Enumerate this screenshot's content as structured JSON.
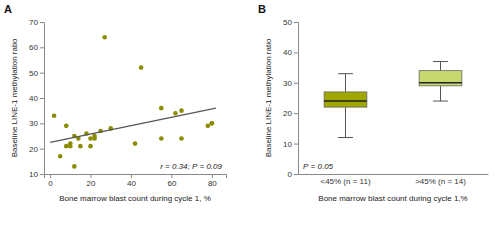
{
  "chart_data": [
    {
      "type": "scatter",
      "title": "A",
      "xlabel": "Bone marrow blast count during cycle 1, %",
      "ylabel": "Baseline LINE-1 methylation ratio",
      "annotation": "r = 0.34; P = 0.09",
      "series": [
        {
          "type": "scatter",
          "color": "#8c8c00",
          "x": [
            2,
            5,
            8,
            8,
            10,
            10,
            12,
            12,
            14,
            15,
            18,
            20,
            20,
            22,
            22,
            25,
            27,
            30,
            42,
            45,
            55,
            55,
            62,
            65,
            65,
            78,
            80,
            80
          ],
          "values": [
            33,
            17,
            29,
            21,
            22,
            21,
            13,
            25,
            24,
            21,
            26,
            24,
            21,
            25,
            24,
            27,
            64,
            28,
            22,
            52,
            36,
            24,
            34,
            35,
            24,
            29,
            30,
            30
          ]
        },
        {
          "type": "line",
          "color": "#555555",
          "x": [
            0,
            82
          ],
          "values": [
            22.5,
            36.0
          ]
        }
      ],
      "xlim": [
        -3,
        87
      ],
      "ylim": [
        10,
        70
      ],
      "xticks": [
        0,
        20,
        40,
        60,
        80
      ],
      "yticks": [
        10,
        20,
        30,
        40,
        50,
        60,
        70
      ],
      "grid": false
    },
    {
      "type": "box",
      "title": "B",
      "xlabel": "Bone marrow blast count during cycle 1,%",
      "ylabel": "Baseline LINE-1 methylation ratio",
      "annotation": "P = 0.05",
      "categories": [
        "<45% (n = 11)",
        ">45% (n = 14)"
      ],
      "whisker_low": [
        12,
        24
      ],
      "q1": [
        22,
        29
      ],
      "median": [
        24,
        30
      ],
      "q3": [
        27,
        34
      ],
      "whisker_high": [
        33,
        37
      ],
      "colors": [
        "#a0a800",
        "#c8d870"
      ],
      "ylim": [
        0,
        50
      ],
      "yticks": [
        0,
        10,
        20,
        30,
        40,
        50
      ],
      "grid": false
    }
  ]
}
